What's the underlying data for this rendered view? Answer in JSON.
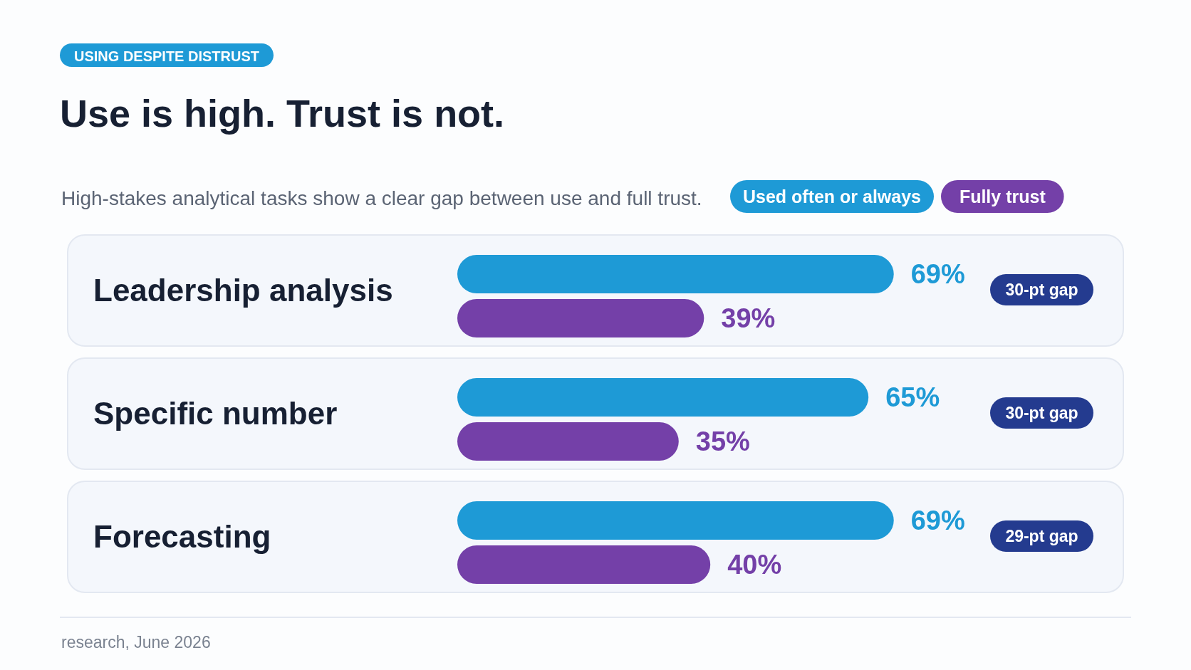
{
  "chart_data": {
    "type": "bar",
    "orientation": "horizontal",
    "title": "Use is high. Trust is not.",
    "subtitle": "High-stakes analytical tasks show a clear gap between use and full trust.",
    "categories": [
      "Leadership analysis",
      "Specific number",
      "Forecasting"
    ],
    "series": [
      {
        "name": "Used often or always",
        "color": "#1e9ad6",
        "values": [
          69,
          65,
          69
        ],
        "value_labels": [
          "69%",
          "65%",
          "69%"
        ]
      },
      {
        "name": "Fully trust",
        "color": "#7440a8",
        "values": [
          39,
          35,
          40
        ],
        "value_labels": [
          "39%",
          "35%",
          "40%"
        ]
      }
    ],
    "xlim": [
      0,
      100
    ],
    "legend": "top right",
    "annotations": [
      "USING DESPITE DISTRUST",
      "research, June 2026",
      "30-pt gap",
      "30-pt gap",
      "29-pt gap"
    ]
  }
}
